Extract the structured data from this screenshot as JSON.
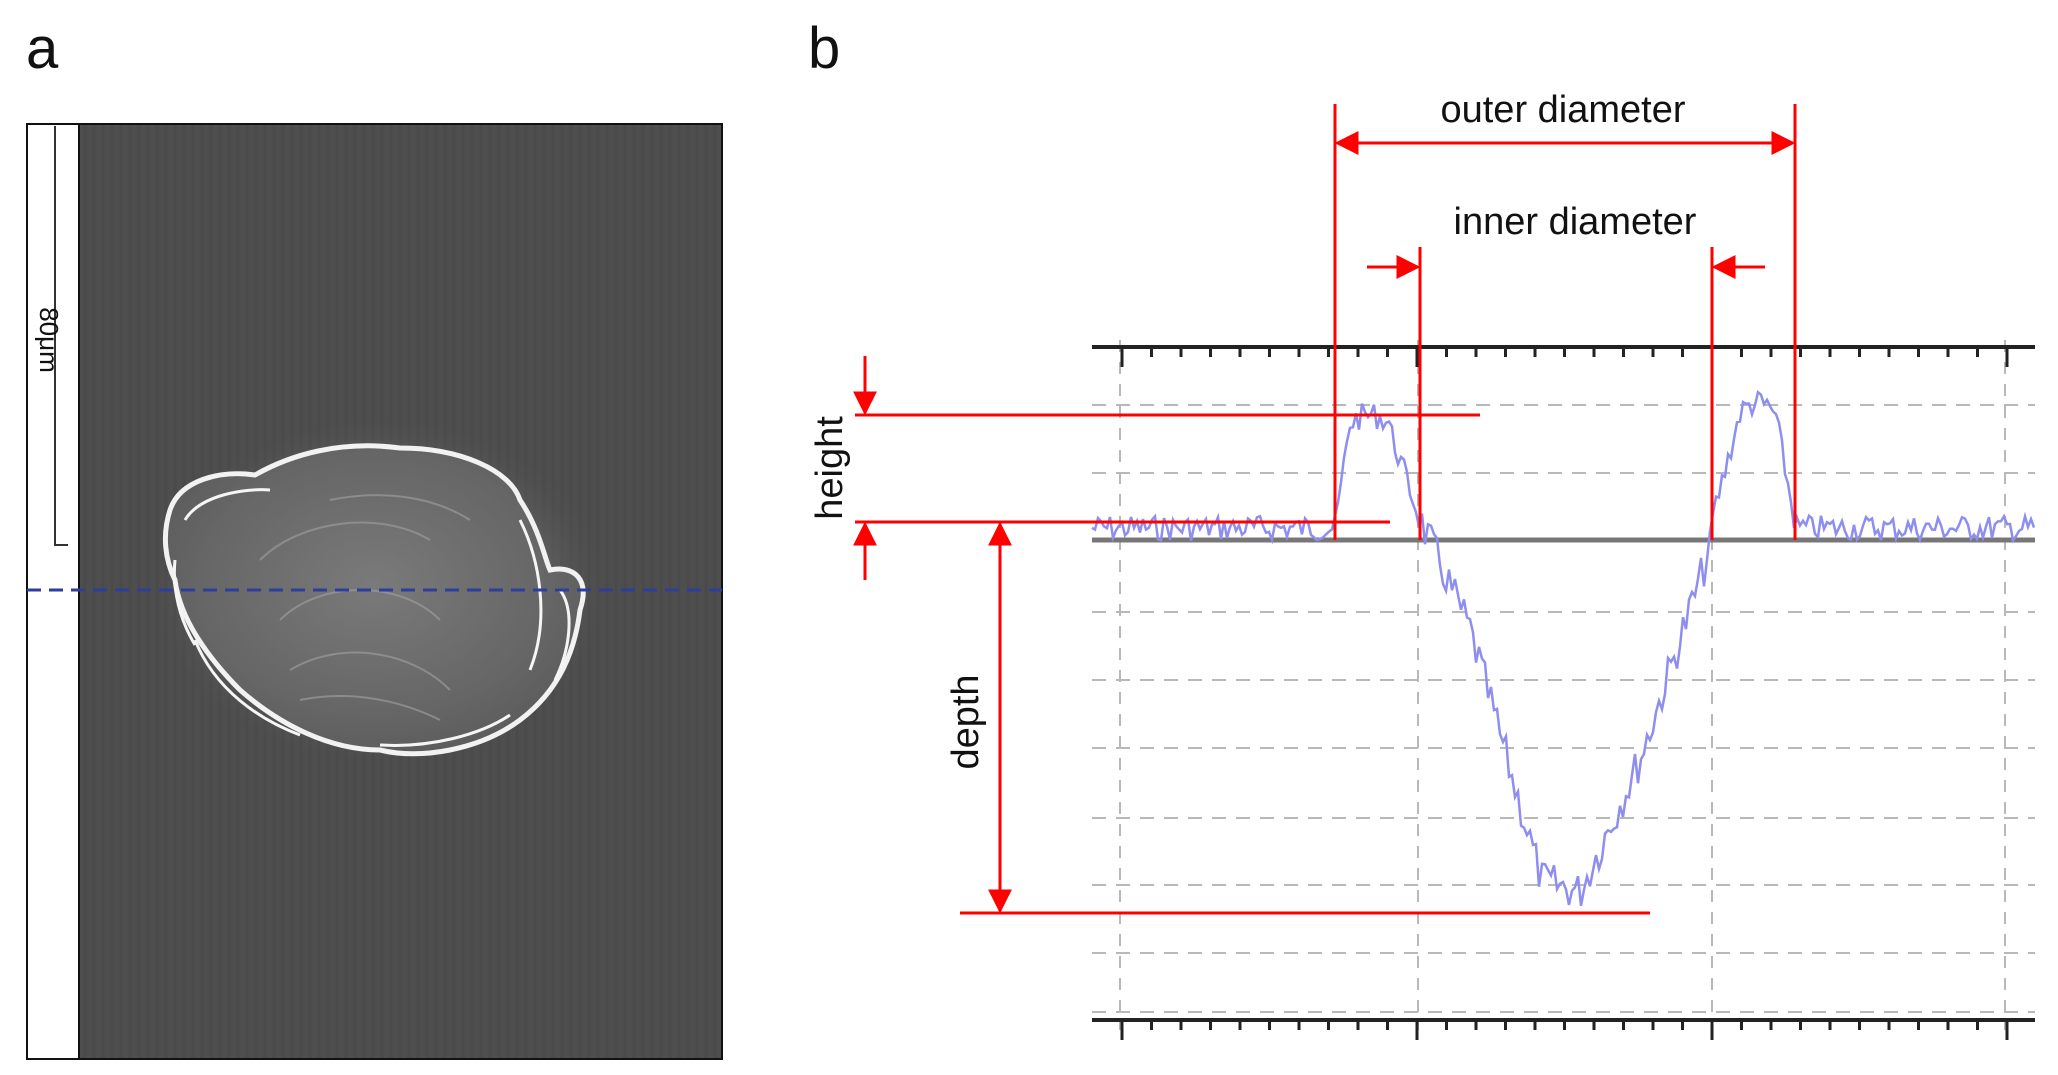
{
  "figure": {
    "panel_a": {
      "label": "a",
      "scale_bar_label": "80μm",
      "colors": {
        "background": "#4e4e4e",
        "crater_rim": "#f2f2f2",
        "section_line": "#2d3e9e"
      }
    },
    "panel_b": {
      "label": "b",
      "annotations": {
        "outer_diameter": "outer diameter",
        "inner_diameter": "inner diameter",
        "height": "height",
        "depth": "depth"
      },
      "colors": {
        "profile": "#8e8ef0",
        "annotation": "#ff0000",
        "axis": "#222222",
        "grid": "#b8b8b8"
      }
    }
  }
}
